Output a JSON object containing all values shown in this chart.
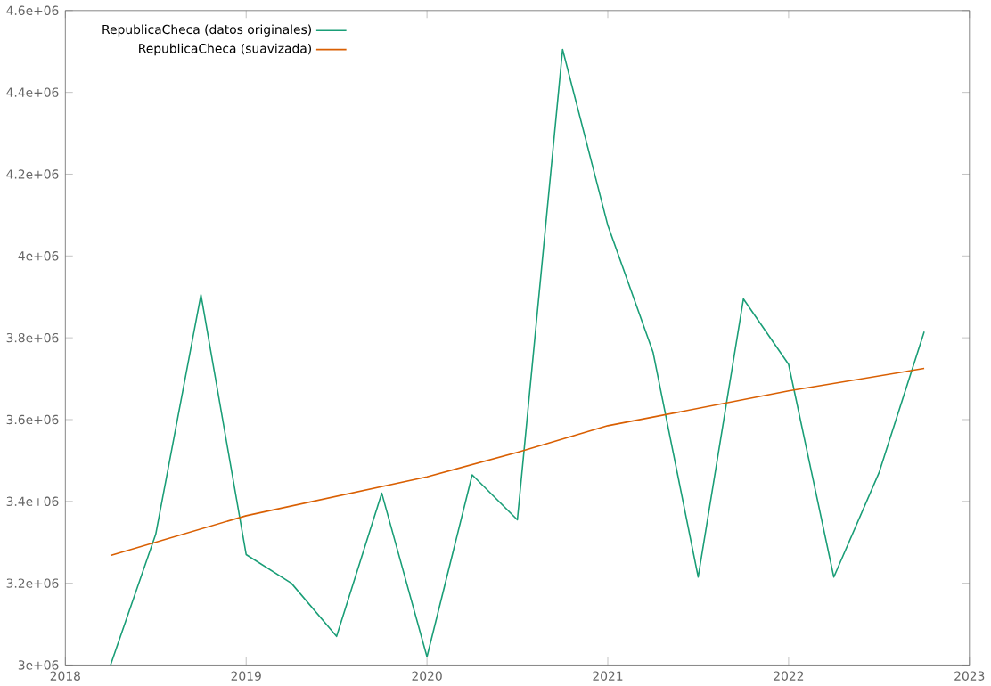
{
  "chart_data": {
    "type": "line",
    "xlim": [
      2018,
      2023
    ],
    "ylim": [
      3000000,
      4600000
    ],
    "xticks": [
      2018,
      2019,
      2020,
      2021,
      2022,
      2023
    ],
    "yticks": [
      {
        "value": 3000000,
        "label": "3e+06"
      },
      {
        "value": 3200000,
        "label": "3.2e+06"
      },
      {
        "value": 3400000,
        "label": "3.4e+06"
      },
      {
        "value": 3600000,
        "label": "3.6e+06"
      },
      {
        "value": 3800000,
        "label": "3.8e+06"
      },
      {
        "value": 4000000,
        "label": "4e+06"
      },
      {
        "value": 4200000,
        "label": "4.2e+06"
      },
      {
        "value": 4400000,
        "label": "4.4e+06"
      },
      {
        "value": 4600000,
        "label": "4.6e+06"
      }
    ],
    "legend": "top left",
    "marker": "none",
    "line_style": "solid",
    "grid": false,
    "series": [
      {
        "name": "RepublicaCheca (datos originales)",
        "color": "#1a9e77",
        "x": [
          2018.25,
          2018.5,
          2018.75,
          2019,
          2019.25,
          2019.5,
          2019.75,
          2020,
          2020.25,
          2020.5,
          2020.75,
          2021,
          2021.25,
          2021.5,
          2021.75,
          2022,
          2022.25,
          2022.5,
          2022.75
        ],
        "values": [
          3000000,
          3320000,
          3905000,
          3270000,
          3200000,
          3070000,
          3420000,
          3020000,
          3465000,
          3355000,
          4505000,
          4075000,
          3765000,
          3215000,
          3895000,
          3735000,
          3215000,
          3470000,
          3815000
        ]
      },
      {
        "name": "RepublicaCheca (suavizada)",
        "color": "#d95f02",
        "x": [
          2018.25,
          2019,
          2020,
          2020.5,
          2021,
          2022,
          2022.75
        ],
        "values": [
          3268000,
          3365000,
          3460000,
          3520000,
          3585000,
          3670000,
          3725000
        ]
      }
    ]
  }
}
